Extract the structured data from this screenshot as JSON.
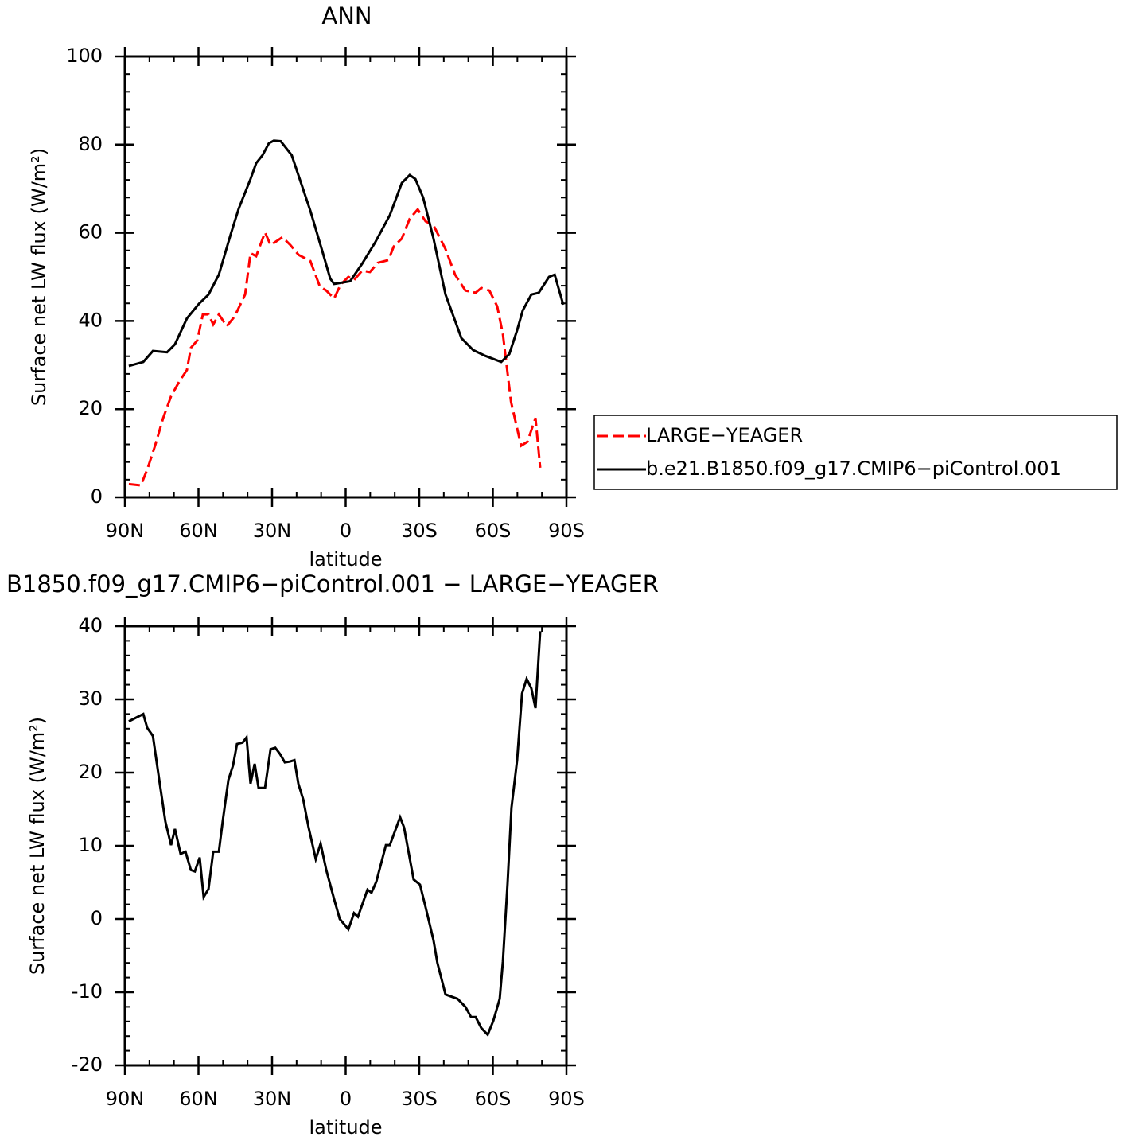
{
  "chart_data": [
    {
      "type": "line",
      "title": "ANN",
      "xlabel": "latitude",
      "ylabel": "Surface net LW flux (W/m²)",
      "xlim": [
        90,
        -90
      ],
      "xticks": [
        {
          "value": 90,
          "label": "90N"
        },
        {
          "value": 60,
          "label": "60N"
        },
        {
          "value": 30,
          "label": "30N"
        },
        0,
        {
          "value": -30,
          "label": "30S"
        },
        {
          "value": -60,
          "label": "60S"
        },
        {
          "value": -90,
          "label": "90S"
        }
      ],
      "xminorticks": [
        80,
        70,
        50,
        40,
        20,
        10,
        -10,
        -20,
        -40,
        -50,
        -70,
        -80
      ],
      "ylim": [
        0,
        100
      ],
      "yticks": [
        0,
        20,
        40,
        60,
        80,
        100
      ],
      "yminorticks": [
        4,
        8,
        12,
        16,
        24,
        28,
        32,
        36,
        44,
        48,
        52,
        56,
        64,
        68,
        72,
        76,
        84,
        88,
        92,
        96
      ],
      "legend": "right",
      "series": [
        {
          "name": "LARGE−YEAGER",
          "color": "#ff0000",
          "dashed": true,
          "x": [
            88.4,
            83.5,
            80.9,
            77.7,
            74.4,
            71.2,
            67.9,
            64.7,
            63.1,
            60.5,
            58.2,
            55.9,
            54,
            51.7,
            48.5,
            45.3,
            41,
            38.8,
            36.5,
            32.9,
            30.6,
            25.8,
            22.5,
            19.2,
            14.4,
            10.5,
            7.9,
            4.7,
            2.1,
            -1.1,
            -3.4,
            -6.7,
            -9.9,
            -13.1,
            -17.4,
            -19.6,
            -22.9,
            -26.1,
            -29.4,
            -32.6,
            -35.8,
            -40.7,
            -44.6,
            -48.8,
            -53,
            -55.3,
            -58.6,
            -61.8,
            -64.1,
            -67.4,
            -71.5,
            -74.1,
            -77.4,
            -79.3
          ],
          "values": [
            3,
            2.7,
            6.3,
            11.7,
            18,
            22.9,
            26.2,
            28.9,
            33.9,
            35.6,
            41.5,
            41.5,
            39.2,
            41.5,
            38.8,
            41,
            46,
            55.4,
            54.7,
            60.1,
            57.2,
            59,
            57.2,
            55,
            53.6,
            47.8,
            46.9,
            45.1,
            48.2,
            50,
            49.3,
            51.4,
            51.1,
            53.2,
            53.8,
            56.9,
            58.7,
            63.2,
            65.3,
            62.6,
            61.7,
            56.3,
            50.5,
            46.9,
            46.4,
            47.5,
            46.9,
            43.3,
            37,
            21.7,
            11.7,
            12.6,
            18,
            6.7
          ]
        },
        {
          "name": "b.e21.B1850.f09_g17.CMIP6−piControl.001",
          "color": "#000000",
          "dashed": false,
          "x": [
            88.4,
            82.5,
            78.6,
            72.8,
            69.6,
            64.7,
            59.8,
            55.9,
            51.7,
            46.9,
            43.6,
            38.8,
            36.5,
            33.9,
            31.3,
            29.3,
            26.5,
            22,
            14.4,
            9.6,
            6.3,
            4.7,
            -1.8,
            -6.7,
            -12,
            -18,
            -22.9,
            -26.1,
            -28.4,
            -31.6,
            -35.8,
            -40.7,
            -47.2,
            -52,
            -56.9,
            -63.4,
            -66.7,
            -69.9,
            -72.2,
            -75.7,
            -78.7,
            -82.9,
            -85.2,
            -88.7
          ],
          "values": [
            29.8,
            30.7,
            33.2,
            32.9,
            34.7,
            40.6,
            43.9,
            46,
            50.5,
            59.6,
            65.5,
            72.2,
            75.8,
            77.6,
            80.3,
            80.9,
            80.8,
            77.6,
            65,
            56,
            49.6,
            48.4,
            49,
            53,
            57.8,
            64,
            71.3,
            73.1,
            72.2,
            68,
            58.7,
            46,
            36.1,
            33.4,
            32.1,
            30.7,
            32.5,
            37.9,
            42.4,
            46,
            46.4,
            50,
            50.5,
            43.7
          ]
        }
      ]
    },
    {
      "type": "line",
      "title": "B1850.f09_g17.CMIP6−piControl.001 − LARGE−YEAGER",
      "xlabel": "latitude",
      "ylabel": "Surface net LW flux (W/m²)",
      "xlim": [
        90,
        -90
      ],
      "xticks": [
        {
          "value": 90,
          "label": "90N"
        },
        {
          "value": 60,
          "label": "60N"
        },
        {
          "value": 30,
          "label": "30N"
        },
        0,
        {
          "value": -30,
          "label": "30S"
        },
        {
          "value": -60,
          "label": "60S"
        },
        {
          "value": -90,
          "label": "90S"
        }
      ],
      "xminorticks": [
        80,
        70,
        50,
        40,
        20,
        10,
        -10,
        -20,
        -40,
        -50,
        -70,
        -80
      ],
      "ylim": [
        -20,
        40
      ],
      "yticks": [
        -20,
        -10,
        0,
        10,
        20,
        30,
        40
      ],
      "yminorticks": [
        -18,
        -16,
        -14,
        -12,
        -8,
        -6,
        -4,
        -2,
        2,
        4,
        6,
        8,
        12,
        14,
        16,
        18,
        22,
        24,
        26,
        28,
        32,
        34,
        36,
        38
      ],
      "color": "#000000",
      "x": [
        88.4,
        82.5,
        80.9,
        78.6,
        76.1,
        73.5,
        71.2,
        69.6,
        67.3,
        65.3,
        63.1,
        61.5,
        59.5,
        57.9,
        55.9,
        54,
        51.7,
        50.1,
        47.8,
        45.9,
        44.3,
        42,
        40.4,
        38.8,
        37.1,
        35.5,
        32.9,
        30.6,
        28.7,
        26.7,
        24.8,
        22.8,
        20.9,
        19.3,
        17.3,
        15.1,
        12.2,
        10.2,
        7.9,
        4.7,
        2.4,
        -1.1,
        -3.4,
        -5,
        -8.9,
        -10.5,
        -12.5,
        -16.4,
        -18,
        -22.2,
        -23.8,
        -27.7,
        -30.3,
        -32.6,
        -35.8,
        -37.4,
        -40.7,
        -45.6,
        -48.8,
        -51.1,
        -53,
        -55.3,
        -57.9,
        -60.2,
        -62.8,
        -64.1,
        -66,
        -67.6,
        -69.9,
        -71.9,
        -73.8,
        -75.7,
        -77.4,
        -79.3
      ],
      "values": [
        27,
        28,
        26.1,
        25,
        19.2,
        13.3,
        10.1,
        12.3,
        8.9,
        9.2,
        6.7,
        6.5,
        8.4,
        3,
        4.1,
        9.2,
        9.2,
        13.4,
        19,
        21,
        23.9,
        24.1,
        24.8,
        18.5,
        21.2,
        17.9,
        17.9,
        23.2,
        23.4,
        22.5,
        21.4,
        21.5,
        21.7,
        18.5,
        16.3,
        12.5,
        8.2,
        10.3,
        6.7,
        2.7,
        0,
        -1.4,
        0.8,
        0.3,
        4,
        3.6,
        5.1,
        10.1,
        10.1,
        13.9,
        12.5,
        5.4,
        4.7,
        1.6,
        -2.9,
        -6,
        -10.3,
        -10.9,
        -12,
        -13.4,
        -13.4,
        -14.9,
        -15.8,
        -13.9,
        -10.9,
        -5.8,
        4.9,
        15.2,
        21.7,
        30.8,
        32.8,
        31.5,
        28.8,
        39.3
      ]
    }
  ]
}
